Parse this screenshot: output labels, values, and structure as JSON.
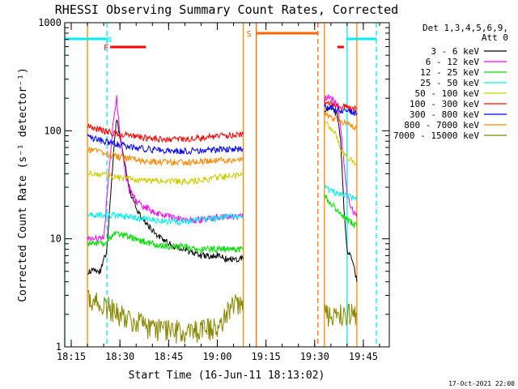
{
  "chart_data": {
    "type": "line",
    "title": "RHESSI Observing Summary Count Rates, Corrected",
    "xlabel": "Start Time (16-Jun-11 18:13:02)",
    "ylabel": "Corrected Count Rate (s⁻¹ detector⁻¹)",
    "footer": "17-Oct-2021 22:00",
    "y_scale": "log",
    "ylim": [
      1,
      1000
    ],
    "xlim": [
      "18:13",
      "19:53"
    ],
    "x_ticks": [
      "18:15",
      "18:30",
      "18:45",
      "19:00",
      "19:15",
      "19:30",
      "19:45"
    ],
    "y_ticks": [
      "1",
      "10",
      "100",
      "1000"
    ],
    "legend": {
      "header_lines": [
        "Det 1,3,4,5,6,9,",
        "Att 0"
      ],
      "placement": "right"
    },
    "series": [
      {
        "name": "3 - 6 keV",
        "color": "#000000",
        "seg1": [
          [
            "18:20",
            5
          ],
          [
            "18:24",
            5
          ],
          [
            "18:26",
            8
          ],
          [
            "18:28",
            60
          ],
          [
            "18:29",
            130
          ],
          [
            "18:31",
            60
          ],
          [
            "18:33",
            28
          ],
          [
            "18:36",
            17
          ],
          [
            "18:40",
            12
          ],
          [
            "18:45",
            9
          ],
          [
            "18:50",
            8
          ],
          [
            "18:55",
            7
          ],
          [
            "19:00",
            7
          ],
          [
            "19:03",
            6.5
          ],
          [
            "19:08",
            6.5
          ]
        ],
        "seg2": [
          [
            "19:33",
            150
          ],
          [
            "19:35",
            170
          ],
          [
            "19:37",
            140
          ],
          [
            "19:38",
            80
          ],
          [
            "19:39",
            20
          ],
          [
            "19:40",
            8
          ],
          [
            "19:42",
            6
          ],
          [
            "19:43",
            4
          ]
        ]
      },
      {
        "name": "6 - 12 keV",
        "color": "#ff00ff",
        "seg1": [
          [
            "18:20",
            10
          ],
          [
            "18:25",
            10
          ],
          [
            "18:28",
            130
          ],
          [
            "18:29",
            200
          ],
          [
            "18:30",
            90
          ],
          [
            "18:32",
            35
          ],
          [
            "18:35",
            22
          ],
          [
            "18:40",
            18
          ],
          [
            "18:45",
            16
          ],
          [
            "18:50",
            15
          ],
          [
            "18:55",
            15
          ],
          [
            "19:00",
            16
          ],
          [
            "19:05",
            16
          ],
          [
            "19:08",
            16
          ]
        ],
        "seg2": [
          [
            "19:33",
            200
          ],
          [
            "19:35",
            210
          ],
          [
            "19:37",
            170
          ],
          [
            "19:38",
            110
          ],
          [
            "19:40",
            25
          ],
          [
            "19:42",
            18
          ],
          [
            "19:43",
            16
          ]
        ]
      },
      {
        "name": "12 - 25 keV",
        "color": "#00dd00",
        "seg1": [
          [
            "18:20",
            9
          ],
          [
            "18:25",
            9
          ],
          [
            "18:28",
            11
          ],
          [
            "18:30",
            11
          ],
          [
            "18:35",
            10
          ],
          [
            "18:40",
            9
          ],
          [
            "18:45",
            8.5
          ],
          [
            "18:50",
            8.5
          ],
          [
            "18:55",
            8
          ],
          [
            "19:00",
            8
          ],
          [
            "19:08",
            8
          ]
        ],
        "seg2": [
          [
            "19:33",
            25
          ],
          [
            "19:36",
            20
          ],
          [
            "19:40",
            15
          ],
          [
            "19:43",
            13
          ]
        ]
      },
      {
        "name": "25 - 50 keV",
        "color": "#00eeee",
        "seg1": [
          [
            "18:20",
            17
          ],
          [
            "18:25",
            16.5
          ],
          [
            "18:30",
            16.5
          ],
          [
            "18:35",
            15.5
          ],
          [
            "18:40",
            15
          ],
          [
            "18:45",
            14.5
          ],
          [
            "18:50",
            14.5
          ],
          [
            "18:55",
            15
          ],
          [
            "19:00",
            15.5
          ],
          [
            "19:05",
            16
          ],
          [
            "19:08",
            16.5
          ]
        ],
        "seg2": [
          [
            "19:33",
            30
          ],
          [
            "19:36",
            27
          ],
          [
            "19:40",
            25
          ],
          [
            "19:43",
            23
          ]
        ]
      },
      {
        "name": "50 - 100 keV",
        "color": "#cccc00",
        "seg1": [
          [
            "18:20",
            42
          ],
          [
            "18:25",
            39
          ],
          [
            "18:30",
            37
          ],
          [
            "18:35",
            35
          ],
          [
            "18:40",
            34
          ],
          [
            "18:45",
            34
          ],
          [
            "18:50",
            34
          ],
          [
            "18:55",
            35
          ],
          [
            "19:00",
            37
          ],
          [
            "19:05",
            38
          ],
          [
            "19:08",
            39
          ]
        ],
        "seg2": [
          [
            "19:33",
            120
          ],
          [
            "19:36",
            100
          ],
          [
            "19:38",
            70
          ],
          [
            "19:40",
            55
          ],
          [
            "19:43",
            50
          ]
        ]
      },
      {
        "name": "100 - 300 keV",
        "color": "#ff0000",
        "seg1": [
          [
            "18:20",
            110
          ],
          [
            "18:25",
            100
          ],
          [
            "18:30",
            93
          ],
          [
            "18:35",
            88
          ],
          [
            "18:40",
            85
          ],
          [
            "18:45",
            83
          ],
          [
            "18:50",
            84
          ],
          [
            "18:55",
            86
          ],
          [
            "19:00",
            89
          ],
          [
            "19:05",
            91
          ],
          [
            "19:08",
            92
          ]
        ],
        "seg2": [
          [
            "19:33",
            185
          ],
          [
            "19:36",
            175
          ],
          [
            "19:40",
            165
          ],
          [
            "19:43",
            160
          ]
        ]
      },
      {
        "name": "300 - 800 keV",
        "color": "#0000ff",
        "seg1": [
          [
            "18:20",
            88
          ],
          [
            "18:25",
            80
          ],
          [
            "18:30",
            74
          ],
          [
            "18:35",
            70
          ],
          [
            "18:40",
            67
          ],
          [
            "18:45",
            65
          ],
          [
            "18:50",
            65
          ],
          [
            "18:55",
            66
          ],
          [
            "19:00",
            67
          ],
          [
            "19:05",
            68
          ],
          [
            "19:08",
            68
          ]
        ],
        "seg2": [
          [
            "19:33",
            170
          ],
          [
            "19:36",
            160
          ],
          [
            "19:40",
            150
          ],
          [
            "19:43",
            145
          ]
        ]
      },
      {
        "name": "800 - 7000 keV",
        "color": "#ff8800",
        "seg1": [
          [
            "18:20",
            68
          ],
          [
            "18:25",
            62
          ],
          [
            "18:30",
            57
          ],
          [
            "18:35",
            54
          ],
          [
            "18:40",
            52
          ],
          [
            "18:45",
            51
          ],
          [
            "18:50",
            51
          ],
          [
            "18:55",
            52
          ],
          [
            "19:00",
            53
          ],
          [
            "19:05",
            54
          ],
          [
            "19:08",
            55
          ]
        ],
        "seg2": [
          [
            "19:33",
            145
          ],
          [
            "19:36",
            130
          ],
          [
            "19:40",
            115
          ],
          [
            "19:43",
            105
          ]
        ]
      },
      {
        "name": "7000 - 15000 keV",
        "color": "#888800",
        "seg1": [
          [
            "18:20",
            2.8
          ],
          [
            "18:25",
            2.5
          ],
          [
            "18:30",
            2
          ],
          [
            "18:40",
            1.5
          ],
          [
            "18:50",
            1.4
          ],
          [
            "19:00",
            1.5
          ],
          [
            "19:05",
            2.5
          ],
          [
            "19:08",
            2.8
          ]
        ],
        "seg2": [
          [
            "19:33",
            2
          ],
          [
            "19:38",
            2
          ],
          [
            "19:43",
            2
          ]
        ]
      }
    ],
    "bars": [
      {
        "label": "N",
        "color": "#00eeee",
        "kind": "attenuator",
        "segments": [
          [
            "18:13",
            "18:26"
          ],
          [
            "19:40",
            "19:49"
          ]
        ]
      },
      {
        "label": "F",
        "color": "#ff0000",
        "kind": "flare",
        "segments": [
          [
            "18:27",
            "18:38"
          ],
          [
            "19:37",
            "19:39"
          ]
        ]
      },
      {
        "label": "S",
        "color": "#ff6600",
        "kind": "saa",
        "segments": [
          [
            "19:12",
            "19:31"
          ]
        ]
      }
    ],
    "markers": [
      {
        "time": "18:13",
        "color": "#00eeee",
        "style": "solid"
      },
      {
        "time": "18:26",
        "color": "#00eeee",
        "style": "dashed"
      },
      {
        "time": "19:12",
        "color": "#ff6600",
        "style": "solid"
      },
      {
        "time": "19:31",
        "color": "#ff6600",
        "style": "dashed"
      },
      {
        "time": "19:40",
        "color": "#00eeee",
        "style": "solid"
      },
      {
        "time": "19:49",
        "color": "#00eeee",
        "style": "dashed"
      },
      {
        "time": "18:20",
        "color": "#ff8800",
        "style": "solid"
      },
      {
        "time": "19:08",
        "color": "#ff8800",
        "style": "solid"
      },
      {
        "time": "19:33",
        "color": "#ff8800",
        "style": "solid"
      },
      {
        "time": "19:43",
        "color": "#ff8800",
        "style": "solid"
      }
    ]
  }
}
